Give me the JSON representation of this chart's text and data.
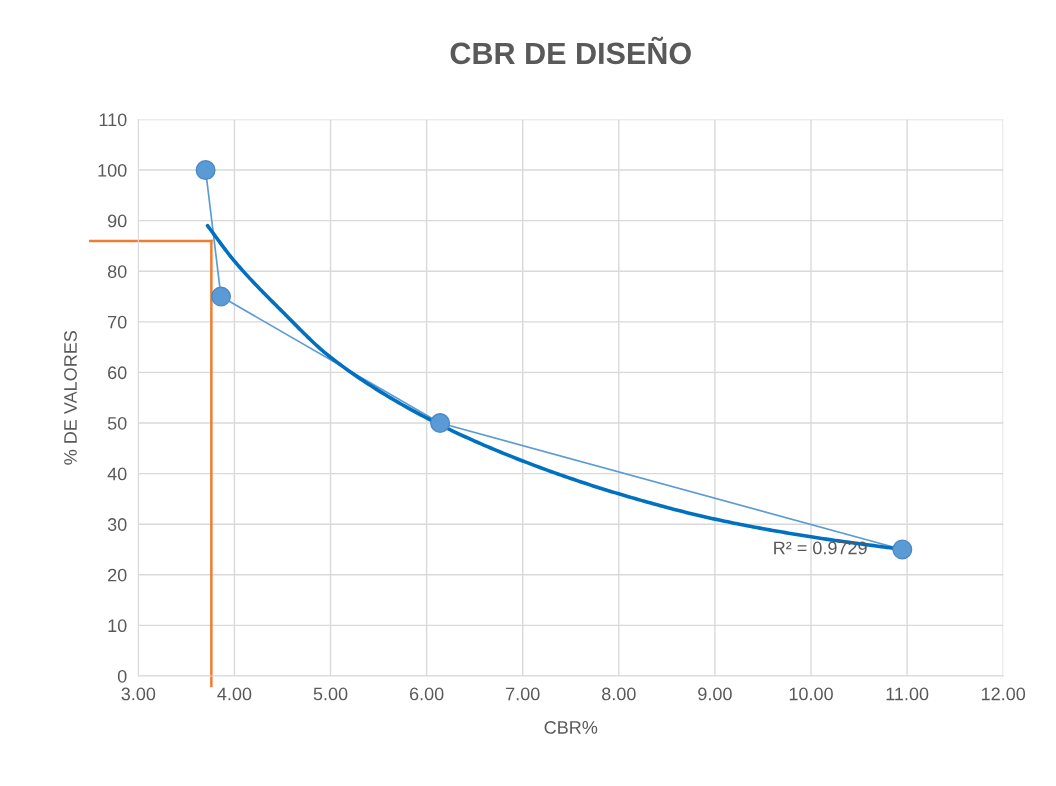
{
  "chart_data": {
    "type": "line",
    "title": "CBR DE DISEÑO",
    "xlabel": "CBR%",
    "ylabel": "% DE VALORES",
    "series": [
      {
        "color": "#5b9bd5",
        "x": [
          3.7,
          3.86,
          6.14,
          10.95
        ],
        "values": [
          100,
          75,
          50,
          25
        ],
        "marker": "circle"
      },
      {
        "color": "#0070c0",
        "x": [
          3.72,
          4.0,
          4.5,
          5.0,
          6.0,
          7.0,
          8.0,
          9.0,
          10.0,
          10.95
        ],
        "values": [
          89,
          82,
          72,
          63,
          51,
          42.5,
          36,
          31,
          27.5,
          25
        ],
        "marker": "none"
      }
    ],
    "xlim": [
      3,
      12
    ],
    "xticks": [
      {
        "value": 3,
        "label": "3.00"
      },
      {
        "value": 4,
        "label": "4.00"
      },
      {
        "value": 5,
        "label": "5.00"
      },
      {
        "value": 6,
        "label": "6.00"
      },
      {
        "value": 7,
        "label": "7.00"
      },
      {
        "value": 8,
        "label": "8.00"
      },
      {
        "value": 9,
        "label": "9.00"
      },
      {
        "value": 10,
        "label": "10.00"
      },
      {
        "value": 11,
        "label": "11.00"
      },
      {
        "value": 12,
        "label": "12.00"
      }
    ],
    "ylim": [
      0,
      110
    ],
    "yticks": [
      0,
      10,
      20,
      30,
      40,
      50,
      60,
      70,
      80,
      90,
      100,
      110
    ],
    "grid": true,
    "legend": false,
    "ref_lines": [
      {
        "axis": "x",
        "value": 3.76,
        "color": "#ed7d31"
      },
      {
        "axis": "y",
        "value": 86,
        "color": "#ed7d31"
      }
    ],
    "annotations": [
      {
        "text": "R² = 0.9729",
        "x": 10.95,
        "y": 25
      }
    ]
  }
}
